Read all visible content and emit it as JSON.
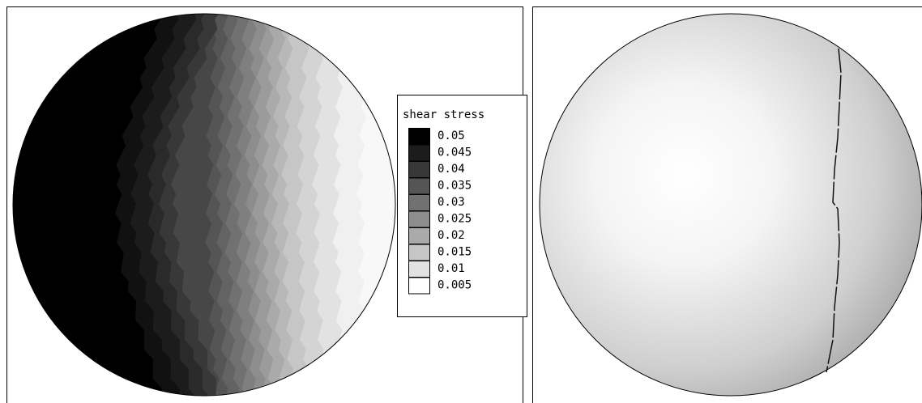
{
  "legend": {
    "title": "shear stress",
    "entries": [
      {
        "label": "0.05",
        "color": "#000000"
      },
      {
        "label": "0.045",
        "color": "#1c1c1c"
      },
      {
        "label": "0.04",
        "color": "#383838"
      },
      {
        "label": "0.035",
        "color": "#555555"
      },
      {
        "label": "0.03",
        "color": "#717171"
      },
      {
        "label": "0.025",
        "color": "#8d8d8d"
      },
      {
        "label": "0.02",
        "color": "#aaaaaa"
      },
      {
        "label": "0.015",
        "color": "#c6c6c6"
      },
      {
        "label": "0.01",
        "color": "#e2e2e2"
      },
      {
        "label": "0.005",
        "color": "#ffffff"
      }
    ]
  }
}
